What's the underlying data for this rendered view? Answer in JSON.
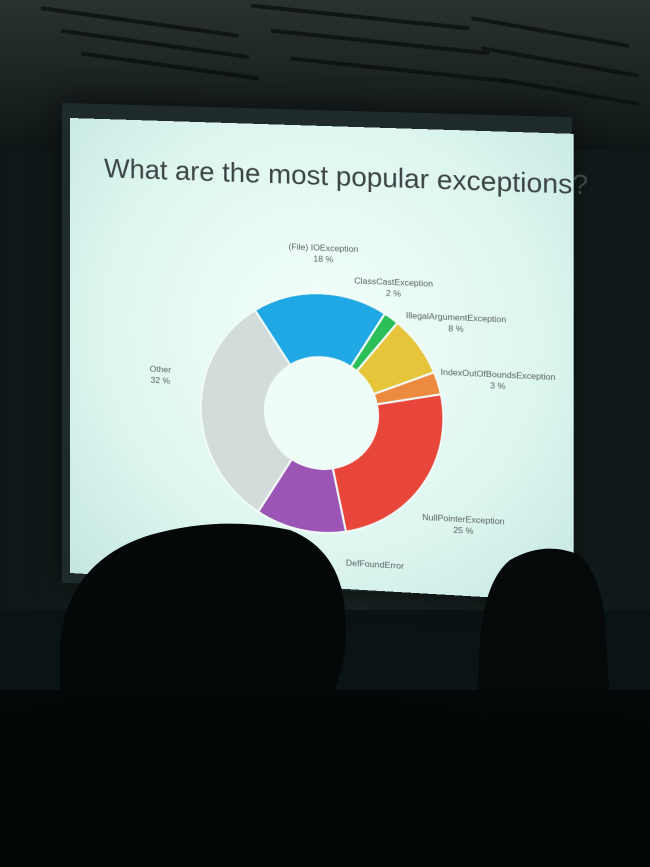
{
  "slide": {
    "title": "What are the most popular exceptions?"
  },
  "chart_data": {
    "type": "pie",
    "title": "What are the most popular exceptions?",
    "donut": true,
    "slices": [
      {
        "label": "(File) IOException",
        "value": 18,
        "value_label": "18 %",
        "color": "#1fa8e3"
      },
      {
        "label": "ClassCastException",
        "value": 2,
        "value_label": "2 %",
        "color": "#2bbf5a"
      },
      {
        "label": "IllegalArgumentException",
        "value": 8,
        "value_label": "8 %",
        "color": "#e6c53a"
      },
      {
        "label": "IndexOutOfBoundsException",
        "value": 3,
        "value_label": "3 %",
        "color": "#ec8a3f"
      },
      {
        "label": "NullPointerException",
        "value": 25,
        "value_label": "25 %",
        "color": "#e8463b"
      },
      {
        "label": "DefFoundError",
        "value": 12,
        "value_label": "",
        "color": "#9a55b5"
      },
      {
        "label": "Other",
        "value": 32,
        "value_label": "32 %",
        "color": "#d2dcdb"
      }
    ]
  }
}
